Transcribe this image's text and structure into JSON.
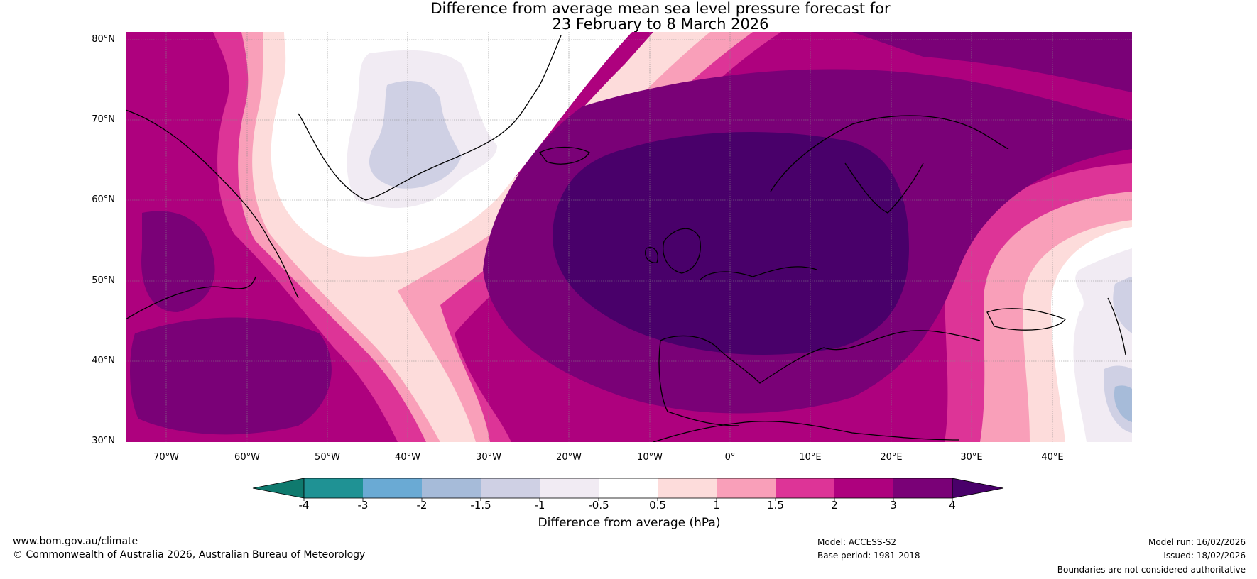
{
  "title": {
    "line1": "Difference from average mean sea level pressure forecast for",
    "line2": "23 February to 8 March 2026"
  },
  "axes": {
    "lat_labels": [
      "80°N",
      "70°N",
      "60°N",
      "50°N",
      "40°N",
      "30°N"
    ],
    "lon_labels": [
      "70°W",
      "60°W",
      "50°W",
      "40°W",
      "30°W",
      "20°W",
      "10°W",
      "0°",
      "10°E",
      "20°E",
      "30°E",
      "40°E"
    ]
  },
  "colorbar": {
    "ticks": [
      "-4",
      "-3",
      "-2",
      "-1.5",
      "-1",
      "-0.5",
      "0.5",
      "1",
      "1.5",
      "2",
      "3",
      "4"
    ],
    "colors": [
      "#1f9294",
      "#6aaad4",
      "#a6bbd9",
      "#cfd0e4",
      "#f1ebf3",
      "#ffffff",
      "#fddcdb",
      "#f99fb9",
      "#dd3497",
      "#ae017e",
      "#7a0177"
    ],
    "under_color": "#0f7a6e",
    "over_color": "#49006a",
    "label": "Difference from average (hPa)"
  },
  "footer": {
    "url": "www.bom.gov.au/climate",
    "copyright": "© Commonwealth of Australia 2026, Australian Bureau of Meteorology",
    "model": "Model: ACCESS-S2",
    "base_period": "Base period: 1981-2018",
    "model_run": "Model run: 16/02/2026",
    "issued": "Issued: 18/02/2026",
    "disclaimer": "Boundaries are not considered authoritative"
  }
}
